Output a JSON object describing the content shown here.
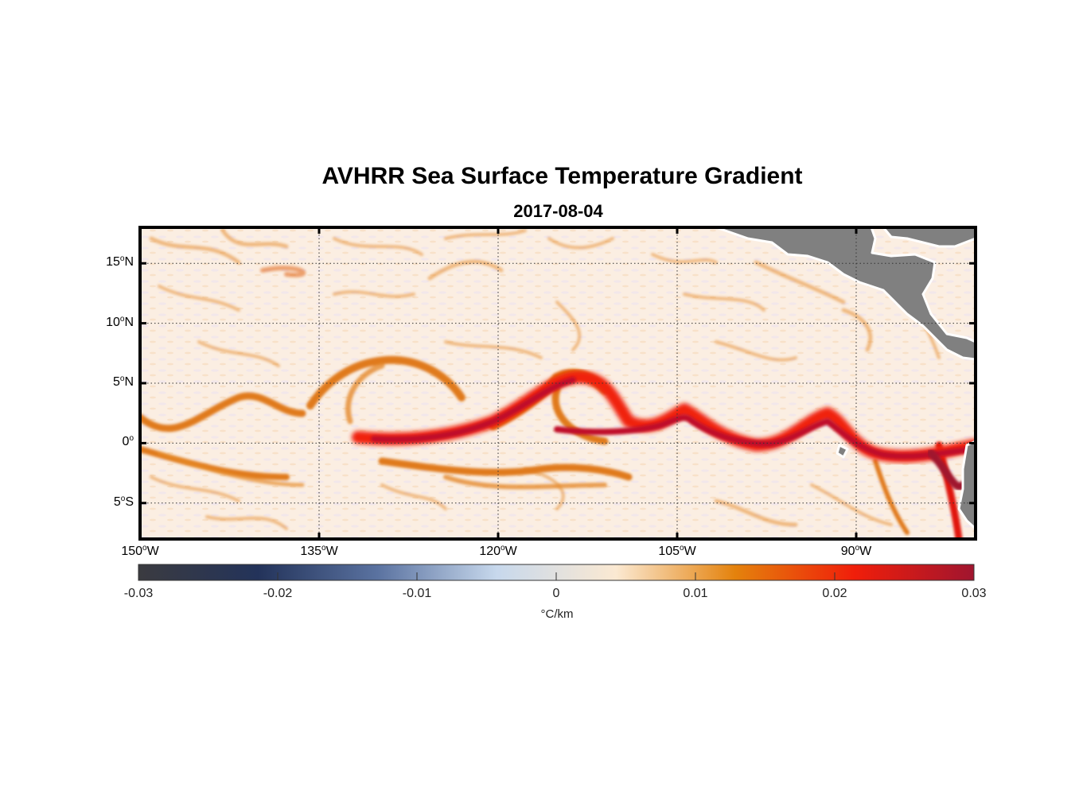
{
  "title": "AVHRR Sea Surface Temperature Gradient",
  "subtitle": "2017-08-04",
  "map": {
    "lon_range": [
      -150,
      -80
    ],
    "lat_range": [
      -8,
      18
    ],
    "lon_ticks": [
      {
        "value": -150,
        "deg": "150",
        "hem": "W"
      },
      {
        "value": -135,
        "deg": "135",
        "hem": "W"
      },
      {
        "value": -120,
        "deg": "120",
        "hem": "W"
      },
      {
        "value": -105,
        "deg": "105",
        "hem": "W"
      },
      {
        "value": -90,
        "deg": "90",
        "hem": "W"
      }
    ],
    "lat_ticks": [
      {
        "value": 15,
        "deg": "15",
        "hem": "N"
      },
      {
        "value": 10,
        "deg": "10",
        "hem": "N"
      },
      {
        "value": 5,
        "deg": "5",
        "hem": "N"
      },
      {
        "value": 0,
        "deg": "0",
        "hem": ""
      },
      {
        "value": -5,
        "deg": "5",
        "hem": "S"
      }
    ],
    "grid": true,
    "land_color": "#808080",
    "ocean_background": "#fbefe4"
  },
  "colorbar": {
    "range": [
      -0.03,
      0.03
    ],
    "ticks": [
      "-0.03",
      "-0.02",
      "-0.01",
      "0",
      "0.01",
      "0.02",
      "0.03"
    ],
    "unit": "°C/km",
    "colors": [
      "#3b3b40",
      "#23335a",
      "#5a72a0",
      "#c7d8ec",
      "#fbe9d2",
      "#e4820c",
      "#f01e0a",
      "#a0152f"
    ]
  }
}
